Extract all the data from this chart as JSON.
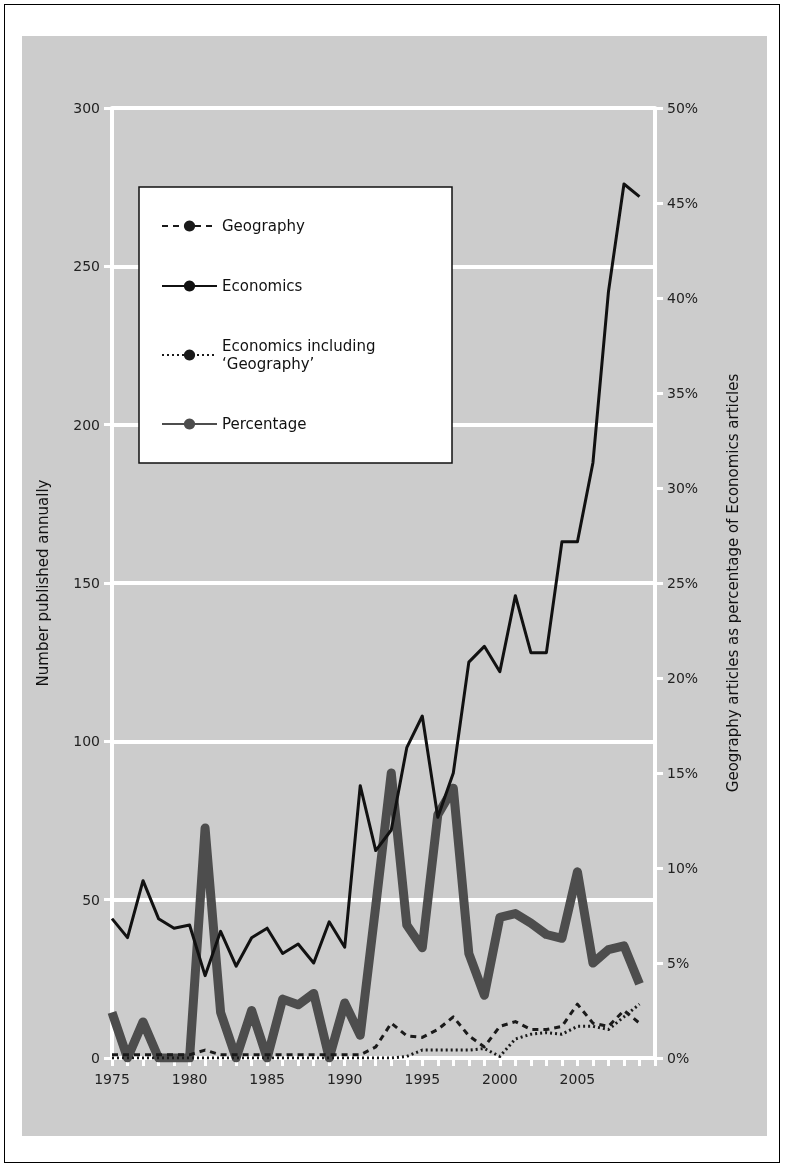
{
  "chart_data": {
    "type": "line",
    "ylabel": "Number published annually",
    "y2label": "Geography articles as percentage of Economics articles",
    "x": [
      1975,
      1976,
      1977,
      1978,
      1979,
      1980,
      1981,
      1982,
      1983,
      1984,
      1985,
      1986,
      1987,
      1988,
      1989,
      1990,
      1991,
      1992,
      1993,
      1994,
      1995,
      1996,
      1997,
      1998,
      1999,
      2000,
      2001,
      2002,
      2003,
      2004,
      2005,
      2006,
      2007,
      2008,
      2009
    ],
    "xlim": [
      1975,
      2010
    ],
    "xticks": [
      1975,
      1980,
      1985,
      1990,
      1995,
      2000,
      2005
    ],
    "ylim": [
      0,
      300
    ],
    "yticks": [
      0,
      50,
      100,
      150,
      200,
      250,
      300
    ],
    "y2lim": [
      0,
      50
    ],
    "y2ticks": [
      {
        "value": 0,
        "label": "0%"
      },
      {
        "value": 5,
        "label": "5%"
      },
      {
        "value": 10,
        "label": "10%"
      },
      {
        "value": 15,
        "label": "15%"
      },
      {
        "value": 20,
        "label": "20%"
      },
      {
        "value": 25,
        "label": "25%"
      },
      {
        "value": 30,
        "label": "30%"
      },
      {
        "value": 35,
        "label": "35%"
      },
      {
        "value": 40,
        "label": "40%"
      },
      {
        "value": 45,
        "label": "45%"
      },
      {
        "value": 50,
        "label": "50%"
      }
    ],
    "grid": "y",
    "legend": "top left",
    "marker": "none",
    "series": [
      {
        "name": "Geography",
        "color": "#1a1a1a",
        "line_style": "dashed",
        "values": [
          1,
          1,
          1,
          1,
          1,
          1,
          2.5,
          1,
          1,
          1,
          1,
          1,
          1,
          1,
          1,
          1,
          1,
          3.5,
          11,
          7,
          6.5,
          9,
          13,
          7,
          3.5,
          10,
          11.5,
          9,
          9,
          10,
          17,
          11,
          10,
          15,
          11
        ]
      },
      {
        "name": "Economics",
        "color": "#111111",
        "line_style": "solid",
        "values": [
          44,
          38,
          56,
          44,
          41,
          42,
          26,
          40,
          29,
          38,
          41,
          33,
          36,
          30,
          43,
          35,
          86,
          65.5,
          72,
          98,
          108,
          76,
          90,
          125,
          130,
          122,
          146,
          128,
          128,
          163,
          163,
          188,
          242,
          276,
          272
        ]
      },
      {
        "name": "Economics including ‘Geography’",
        "color": "#1a1a1a",
        "line_style": "dotted",
        "values": [
          0,
          0,
          0,
          0,
          0,
          0,
          0,
          0,
          0,
          0,
          0,
          0,
          0,
          0,
          0,
          0,
          0,
          0,
          0,
          0.5,
          2.5,
          2.5,
          2.5,
          2.5,
          3,
          0.5,
          6,
          7.5,
          8,
          7.5,
          10,
          10,
          9,
          13,
          17
        ]
      },
      {
        "name": "Percentage",
        "color": "#4d4d4d",
        "line_style": "solid",
        "axis": "y2",
        "values": [
          2.4,
          0,
          1.9,
          0,
          0,
          0,
          12.1,
          2.4,
          0,
          2.5,
          0,
          3.1,
          2.8,
          3.4,
          0,
          2.9,
          1.2,
          8,
          15,
          7,
          5.8,
          12.8,
          14.2,
          5.5,
          3.3,
          7.4,
          7.6,
          7.1,
          6.5,
          6.3,
          9.8,
          5,
          5.7,
          5.9,
          3.9
        ]
      }
    ]
  }
}
